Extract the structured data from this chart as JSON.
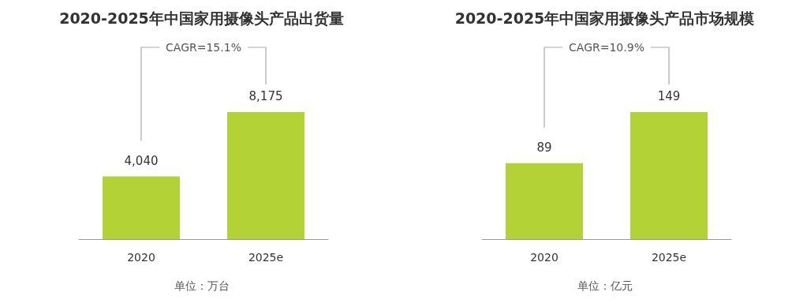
{
  "chart_data": [
    {
      "type": "bar",
      "title": "2020-2025年中国家用摄像头产品出货量",
      "categories": [
        "2020",
        "2025e"
      ],
      "values": [
        4040,
        8175
      ],
      "color": "#b2d235",
      "data_labels": true,
      "value_labels": [
        "4,040",
        "8,175"
      ],
      "annotations": [
        "CAGR=15.1%",
        "单位：万台"
      ]
    },
    {
      "type": "bar",
      "title": "2020-2025年中国家用摄像头产品市场规模",
      "categories": [
        "2020",
        "2025e"
      ],
      "values": [
        89,
        149
      ],
      "color": "#b2d235",
      "data_labels": true,
      "annotations": [
        "CAGR=10.9%",
        "单位：亿元"
      ]
    }
  ]
}
